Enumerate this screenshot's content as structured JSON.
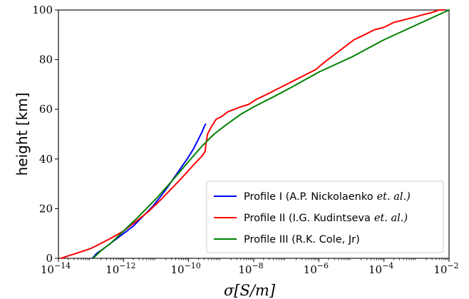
{
  "chart_data": {
    "type": "line",
    "xlabel": "σ[S/m]",
    "ylabel": "height [km]",
    "xscale": "log",
    "xlim": [
      1e-14,
      0.01
    ],
    "ylim": [
      0,
      100
    ],
    "x_ticks": [
      {
        "base": "10",
        "exp": "−14"
      },
      {
        "base": "10",
        "exp": "−12"
      },
      {
        "base": "10",
        "exp": "−10"
      },
      {
        "base": "10",
        "exp": "−8"
      },
      {
        "base": "10",
        "exp": "−6"
      },
      {
        "base": "10",
        "exp": "−4"
      },
      {
        "base": "10",
        "exp": "−2"
      }
    ],
    "x_tick_values": [
      1e-14,
      1e-12,
      1e-10,
      1e-08,
      1e-06,
      0.0001,
      0.01
    ],
    "y_ticks": [
      "0",
      "20",
      "40",
      "60",
      "80",
      "100"
    ],
    "y_tick_values": [
      0,
      20,
      40,
      60,
      80,
      100
    ],
    "grid": false,
    "legend_position": "bottom-right",
    "series": [
      {
        "name": "Profile I (A.P. Nickolaenko",
        "name_suffix": "et. al.)",
        "color": "#0000ff",
        "x": [
          1.1e-13,
          1.5e-13,
          2.5e-13,
          5e-13,
          1e-12,
          2e-12,
          4e-12,
          8e-12,
          1.6e-11,
          3e-11,
          5.5e-11,
          9e-11,
          1.4e-10,
          2e-10,
          2.6e-10,
          3e-10,
          3.3e-10
        ],
        "y": [
          0,
          2,
          4,
          7,
          10,
          13,
          17,
          21,
          26,
          31,
          36,
          40,
          44,
          48,
          51,
          53,
          54
        ]
      },
      {
        "name": "Profile II (I.G. Kudintseva",
        "name_suffix": "et. al.)",
        "color": "#ff0000",
        "x": [
          1.2e-14,
          2e-14,
          3.5e-14,
          6e-14,
          1e-13,
          2e-13,
          4e-13,
          1e-12,
          2.5e-12,
          6e-12,
          1.5e-11,
          3.5e-11,
          8e-11,
          1.5e-10,
          2.5e-10,
          3.2e-10,
          3.4e-10,
          3.8e-10,
          5e-10,
          7e-10,
          1e-09,
          1.6e-09,
          2.5e-09,
          4e-09,
          7e-09,
          1.2e-08,
          2.5e-08,
          5e-08,
          1e-07,
          2e-07,
          4e-07,
          8e-07,
          1.5e-06,
          3e-06,
          6e-06,
          1.2e-05,
          2.5e-05,
          5e-05,
          0.0001,
          0.0002,
          0.0004,
          0.0008,
          0.0015,
          0.003,
          0.005,
          0.007
        ],
        "y": [
          0,
          1,
          2,
          3,
          4,
          6,
          8,
          11,
          15,
          19,
          24,
          29,
          34,
          38,
          41,
          43,
          46,
          50,
          53,
          56,
          57,
          59,
          60,
          61,
          62,
          64,
          66,
          68,
          70,
          72,
          74,
          76,
          79,
          82,
          85,
          88,
          90,
          92,
          93,
          95,
          96,
          97,
          98,
          99,
          100,
          100
        ]
      },
      {
        "name": "Profile III (R.K. Cole, Jr)",
        "name_suffix": "",
        "color": "#008000",
        "x": [
          1.15e-13,
          2e-13,
          4e-13,
          1e-12,
          3e-12,
          1e-11,
          3e-11,
          1e-10,
          2.5e-10,
          6e-10,
          1.5e-09,
          4e-09,
          1e-08,
          4e-08,
          1.5e-07,
          1e-06,
          1e-05,
          0.0001,
          0.001,
          0.01
        ],
        "y": [
          0,
          3,
          6,
          11,
          17,
          24,
          31,
          39,
          45,
          50,
          54,
          58,
          61,
          65,
          69,
          75,
          81,
          88,
          94,
          100
        ]
      }
    ]
  }
}
